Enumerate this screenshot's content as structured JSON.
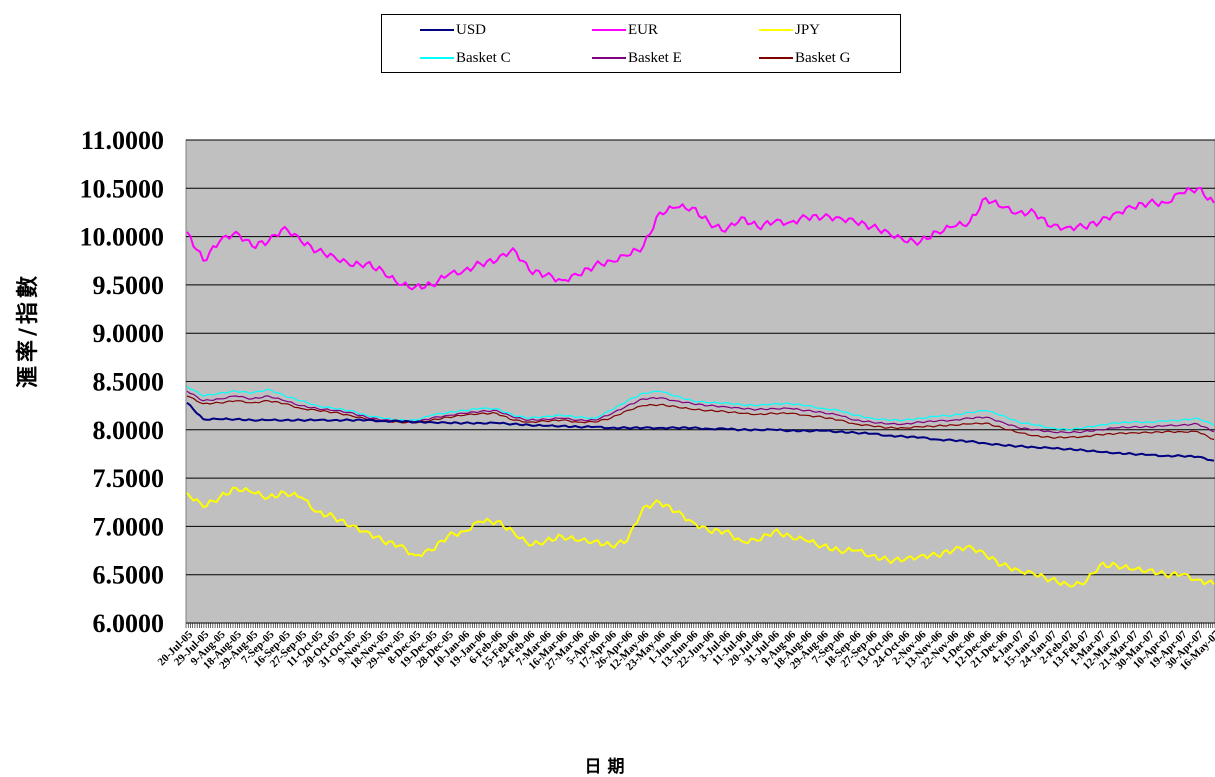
{
  "chart_data": {
    "type": "line",
    "title": "",
    "xlabel": "日期",
    "ylabel": "滙率/指數",
    "ylim": [
      6.0,
      11.0
    ],
    "y_ticks": [
      "6.0000",
      "6.5000",
      "7.0000",
      "7.5000",
      "8.0000",
      "8.5000",
      "9.0000",
      "9.5000",
      "10.0000",
      "10.5000",
      "11.0000"
    ],
    "grid": true,
    "legend_position": "top-center",
    "plot_background": "#c0c0c0",
    "x": [
      "20-Jul-05",
      "29-Jul-05",
      "9-Aug-05",
      "18-Aug-05",
      "29-Aug-05",
      "7-Sep-05",
      "16-Sep-05",
      "27-Sep-05",
      "11-Oct-05",
      "20-Oct-05",
      "31-Oct-05",
      "9-Nov-05",
      "18-Nov-05",
      "29-Nov-05",
      "8-Dec-05",
      "19-Dec-05",
      "28-Dec-05",
      "10-Jan-06",
      "19-Jan-06",
      "6-Feb-06",
      "15-Feb-06",
      "24-Feb-06",
      "7-Mar-06",
      "16-Mar-06",
      "27-Mar-06",
      "5-Apr-06",
      "17-Apr-06",
      "26-Apr-06",
      "12-May-06",
      "23-May-06",
      "1-Jun-06",
      "13-Jun-06",
      "22-Jun-06",
      "3-Jul-06",
      "11-Jul-06",
      "20-Jul-06",
      "31-Jul-06",
      "9-Aug-06",
      "18-Aug-06",
      "29-Aug-06",
      "7-Sep-06",
      "18-Sep-06",
      "27-Sep-06",
      "13-Oct-06",
      "24-Oct-06",
      "2-Nov-06",
      "13-Nov-06",
      "22-Nov-06",
      "1-Dec-06",
      "12-Dec-06",
      "21-Dec-06",
      "4-Jan-07",
      "15-Jan-07",
      "24-Jan-07",
      "2-Feb-07",
      "13-Feb-07",
      "1-Mar-07",
      "12-Mar-07",
      "21-Mar-07",
      "30-Mar-07",
      "10-Apr-07",
      "19-Apr-07",
      "30-Apr-07",
      "16-May-07"
    ],
    "series": [
      {
        "name": "USD",
        "color": "#000080",
        "values": [
          8.28,
          8.11,
          8.11,
          8.11,
          8.1,
          8.1,
          8.1,
          8.1,
          8.1,
          8.1,
          8.1,
          8.1,
          8.09,
          8.09,
          8.08,
          8.08,
          8.07,
          8.07,
          8.07,
          8.07,
          8.06,
          8.05,
          8.04,
          8.04,
          8.03,
          8.03,
          8.02,
          8.02,
          8.02,
          8.02,
          8.02,
          8.02,
          8.01,
          8.01,
          8.0,
          8.0,
          8.0,
          7.99,
          7.99,
          7.99,
          7.98,
          7.97,
          7.96,
          7.94,
          7.93,
          7.92,
          7.9,
          7.89,
          7.88,
          7.86,
          7.84,
          7.83,
          7.82,
          7.81,
          7.8,
          7.79,
          7.77,
          7.76,
          7.75,
          7.74,
          7.73,
          7.73,
          7.72,
          7.68
        ]
      },
      {
        "name": "EUR",
        "color": "#ff00ff",
        "values": [
          10.05,
          9.75,
          9.95,
          10.05,
          9.9,
          9.95,
          10.1,
          9.95,
          9.85,
          9.8,
          9.7,
          9.72,
          9.65,
          9.5,
          9.48,
          9.5,
          9.6,
          9.65,
          9.72,
          9.75,
          9.88,
          9.65,
          9.6,
          9.55,
          9.6,
          9.7,
          9.75,
          9.8,
          9.9,
          10.25,
          10.3,
          10.3,
          10.15,
          10.05,
          10.2,
          10.1,
          10.15,
          10.15,
          10.2,
          10.2,
          10.2,
          10.15,
          10.1,
          10.05,
          9.95,
          9.95,
          10.05,
          10.1,
          10.15,
          10.4,
          10.3,
          10.25,
          10.25,
          10.1,
          10.1,
          10.1,
          10.15,
          10.25,
          10.3,
          10.35,
          10.35,
          10.45,
          10.5,
          10.35
        ]
      },
      {
        "name": "JPY",
        "color": "#ffff00",
        "values": [
          7.35,
          7.2,
          7.3,
          7.4,
          7.35,
          7.3,
          7.35,
          7.3,
          7.15,
          7.1,
          7.0,
          6.95,
          6.85,
          6.8,
          6.7,
          6.75,
          6.9,
          6.95,
          7.05,
          7.05,
          6.95,
          6.8,
          6.85,
          6.9,
          6.85,
          6.85,
          6.8,
          6.85,
          7.2,
          7.25,
          7.15,
          7.05,
          6.95,
          6.95,
          6.85,
          6.85,
          6.95,
          6.9,
          6.85,
          6.8,
          6.75,
          6.75,
          6.7,
          6.65,
          6.65,
          6.7,
          6.7,
          6.75,
          6.8,
          6.7,
          6.6,
          6.55,
          6.5,
          6.45,
          6.4,
          6.4,
          6.6,
          6.6,
          6.55,
          6.55,
          6.5,
          6.5,
          6.45,
          6.4
        ]
      },
      {
        "name": "Basket C",
        "color": "#00ffff",
        "values": [
          8.45,
          8.35,
          8.38,
          8.4,
          8.38,
          8.42,
          8.35,
          8.3,
          8.25,
          8.22,
          8.2,
          8.15,
          8.12,
          8.1,
          8.1,
          8.15,
          8.18,
          8.2,
          8.22,
          8.22,
          8.15,
          8.12,
          8.14,
          8.15,
          8.13,
          8.12,
          8.2,
          8.3,
          8.38,
          8.4,
          8.35,
          8.3,
          8.28,
          8.28,
          8.26,
          8.25,
          8.27,
          8.27,
          8.25,
          8.22,
          8.2,
          8.15,
          8.12,
          8.1,
          8.1,
          8.12,
          8.14,
          8.15,
          8.18,
          8.2,
          8.15,
          8.08,
          8.05,
          8.02,
          8.0,
          8.02,
          8.05,
          8.07,
          8.08,
          8.08,
          8.09,
          8.1,
          8.12,
          8.05
        ]
      },
      {
        "name": "Basket E",
        "color": "#800080",
        "values": [
          8.4,
          8.3,
          8.32,
          8.35,
          8.32,
          8.35,
          8.3,
          8.25,
          8.22,
          8.2,
          8.18,
          8.13,
          8.1,
          8.09,
          8.08,
          8.12,
          8.15,
          8.17,
          8.19,
          8.2,
          8.13,
          8.1,
          8.11,
          8.12,
          8.1,
          8.1,
          8.16,
          8.25,
          8.32,
          8.33,
          8.3,
          8.27,
          8.25,
          8.24,
          8.22,
          8.21,
          8.22,
          8.22,
          8.2,
          8.18,
          8.15,
          8.1,
          8.08,
          8.06,
          8.06,
          8.08,
          8.09,
          8.1,
          8.12,
          8.13,
          8.08,
          8.02,
          8.0,
          7.98,
          7.97,
          7.98,
          8.0,
          8.02,
          8.03,
          8.03,
          8.04,
          8.05,
          8.06,
          7.98
        ]
      },
      {
        "name": "Basket G",
        "color": "#800000",
        "values": [
          8.35,
          8.27,
          8.28,
          8.3,
          8.28,
          8.3,
          8.27,
          8.22,
          8.2,
          8.18,
          8.15,
          8.11,
          8.09,
          8.08,
          8.07,
          8.1,
          8.13,
          8.15,
          8.17,
          8.17,
          8.1,
          8.08,
          8.09,
          8.1,
          8.08,
          8.08,
          8.12,
          8.2,
          8.25,
          8.26,
          8.24,
          8.21,
          8.2,
          8.19,
          8.17,
          8.16,
          8.17,
          8.17,
          8.15,
          8.13,
          8.1,
          8.06,
          8.04,
          8.02,
          8.02,
          8.03,
          8.04,
          8.05,
          8.06,
          8.07,
          8.02,
          7.97,
          7.94,
          7.92,
          7.92,
          7.93,
          7.95,
          7.96,
          7.97,
          7.97,
          7.98,
          7.98,
          7.98,
          7.9
        ]
      }
    ]
  }
}
